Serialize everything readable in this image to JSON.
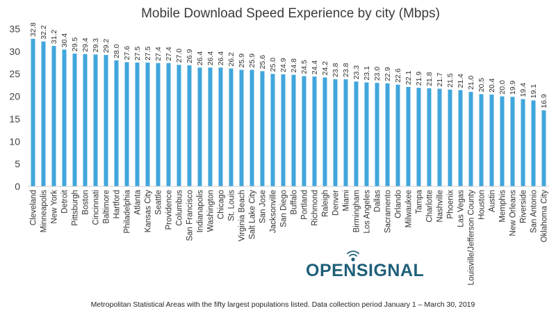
{
  "chart_data": {
    "type": "bar",
    "title": "Mobile Download Speed Experience by city (Mbps)",
    "xlabel": "",
    "ylabel": "",
    "ylim": [
      0,
      35
    ],
    "yticks": [
      0,
      5,
      10,
      15,
      20,
      25,
      30,
      35
    ],
    "ytick_labels": [
      "0",
      "5",
      "10",
      "15",
      "20",
      "25",
      "30",
      "35"
    ],
    "grid": false,
    "legend": "none",
    "bar_color": "#41a6dc",
    "categories": [
      "Cleveland",
      "Minneapolis",
      "New York",
      "Detroit",
      "Pittsburgh",
      "Boston",
      "Cincinnati",
      "Baltimore",
      "Hartford",
      "Philadelphia",
      "Atlanta",
      "Kansas City",
      "Seattle",
      "Providence",
      "Columbus",
      "San Francisco",
      "Indianapolis",
      "Washington",
      "Chicago",
      "St. Louis",
      "Virginia Beach",
      "Salt Lake City",
      "San Jose",
      "Jacksonville",
      "San Diego",
      "Buffalo",
      "Portland",
      "Richmond",
      "Raleigh",
      "Denver",
      "Miami",
      "Birmingham",
      "Los Angeles",
      "Dallas",
      "Sacramento",
      "Orlando",
      "Milwaukee",
      "Tampa",
      "Charlotte",
      "Nashville",
      "Phoenix",
      "Las Vegas",
      "Louisville/Jefferson County",
      "Houston",
      "Austin",
      "Memphis",
      "New Orleans",
      "Riverside",
      "San Antonio",
      "Oklahoma City"
    ],
    "values": [
      32.8,
      32.2,
      31.2,
      30.4,
      29.5,
      29.4,
      29.3,
      29.2,
      28.0,
      27.6,
      27.5,
      27.5,
      27.4,
      27.4,
      27.0,
      26.9,
      26.4,
      26.4,
      26.4,
      26.2,
      25.9,
      25.9,
      25.6,
      25.0,
      24.9,
      24.8,
      24.5,
      24.4,
      24.2,
      23.8,
      23.8,
      23.3,
      23.1,
      23.0,
      22.9,
      22.6,
      22.1,
      21.9,
      21.8,
      21.7,
      21.5,
      21.4,
      21.0,
      20.5,
      20.4,
      20.0,
      19.9,
      19.4,
      19.1,
      16.9
    ],
    "value_labels": [
      "32.8",
      "32.2",
      "31.2",
      "30.4",
      "29.5",
      "29.4",
      "29.3",
      "29.2",
      "28.0",
      "27.6",
      "27.5",
      "27.5",
      "27.4",
      "27.4",
      "27.0",
      "26.9",
      "26.4",
      "26.4",
      "26.4",
      "26.2",
      "25.9",
      "25.9",
      "25.6",
      "25.0",
      "24.9",
      "24.8",
      "24.5",
      "24.4",
      "24.2",
      "23.8",
      "23.8",
      "23.3",
      "23.1",
      "23.0",
      "22.9",
      "22.6",
      "22.1",
      "21.9",
      "21.8",
      "21.7",
      "21.5",
      "21.4",
      "21.0",
      "20.5",
      "20.4",
      "20.0",
      "19.9",
      "19.4",
      "19.1",
      "16.9"
    ]
  },
  "logo": {
    "text": "OPENSIGNAL",
    "color": "#1f5f7a"
  },
  "footnote": "Metropolitan Statistical Areas with the fifty largest populations listed. Data collection period January 1 – March 30, 2019"
}
